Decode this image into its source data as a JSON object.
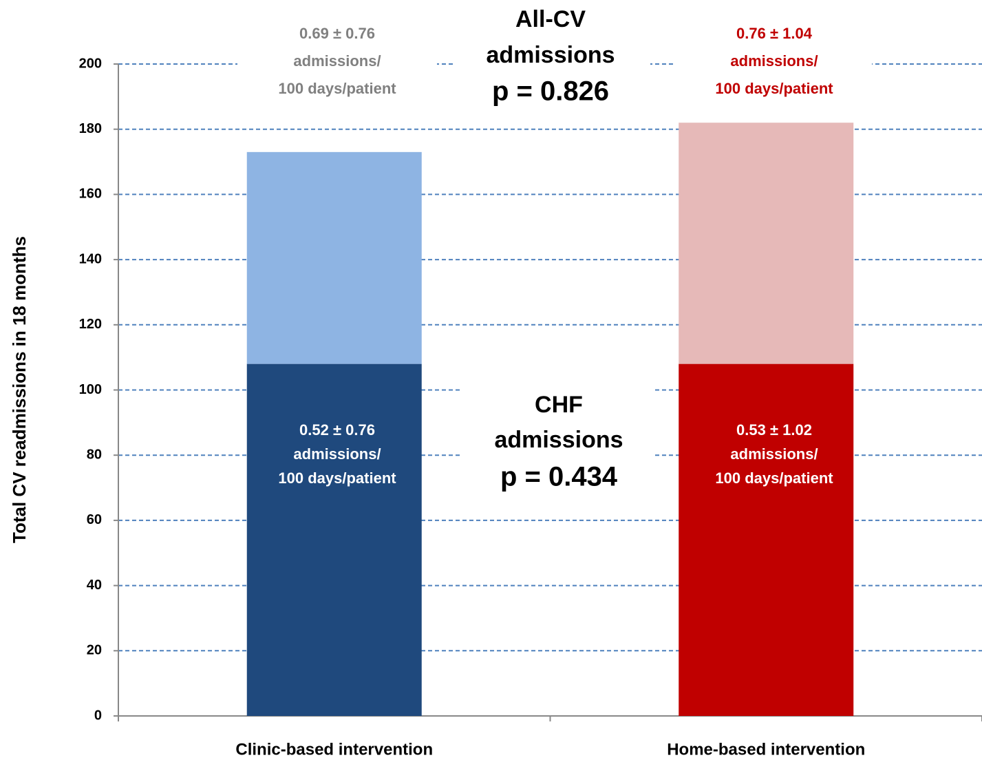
{
  "chart_data": {
    "type": "stacked_bar",
    "y_label": "Total CV readmissions in 18 months",
    "categories": [
      "Clinic-based intervention",
      "Home-based intervention"
    ],
    "series": [
      {
        "colors": [
          "#1f497d",
          "#c00000"
        ],
        "values": [
          108,
          108
        ]
      },
      {
        "colors": [
          "#8eb4e3",
          "#e6b9b8"
        ],
        "values": [
          65,
          74
        ]
      }
    ],
    "ylim": [
      0,
      200
    ],
    "yticks": [
      0,
      20,
      40,
      60,
      80,
      100,
      120,
      140,
      160,
      180,
      200
    ],
    "grid": true,
    "grid_color": "#4f81bd",
    "annotations": [
      {
        "lines": [
          "0.69 ± 0.76",
          "admissions/",
          "100 days/patient"
        ],
        "color": "#808080"
      },
      {
        "lines": [
          "All-CV",
          "admissions",
          "p = 0.826"
        ],
        "color": "#000000"
      },
      {
        "lines": [
          "0.76 ± 1.04",
          "admissions/",
          "100 days/patient"
        ],
        "color": "#c00000"
      },
      {
        "lines": [
          "0.52 ± 0.76",
          "admissions/",
          "100 days/patient"
        ],
        "color": "#ffffff"
      },
      {
        "lines": [
          "CHF",
          "admissions",
          "p = 0.434"
        ],
        "color": "#000000"
      },
      {
        "lines": [
          "0.53 ± 1.02",
          "admissions/",
          "100 days/patient"
        ],
        "color": "#ffffff"
      }
    ]
  }
}
